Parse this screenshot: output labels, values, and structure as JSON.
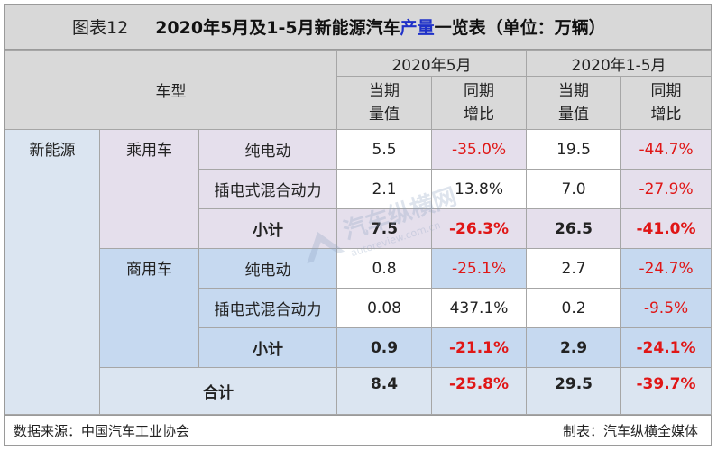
{
  "title": {
    "label": "图表12",
    "prefix": "2020年5月及1-5月新能源汽车",
    "highlight": "产量",
    "suffix": "一览表（单位：万辆）"
  },
  "header": {
    "vehicle_type": "车型",
    "period1": "2020年5月",
    "period2": "2020年1-5月",
    "current": [
      "当期",
      "量值"
    ],
    "yoy": [
      "同期",
      "增比"
    ]
  },
  "category": "新能源",
  "groups": {
    "passenger": {
      "name": "乘用车",
      "rows": [
        {
          "type": "纯电动",
          "m_val": "5.5",
          "m_yoy": "-35.0%",
          "c_val": "19.5",
          "c_yoy": "-44.7%"
        },
        {
          "type": "插电式混合动力",
          "m_val": "2.1",
          "m_yoy": "13.8%",
          "c_val": "7.0",
          "c_yoy": "-27.9%"
        }
      ],
      "subtotal": {
        "label": "小计",
        "m_val": "7.5",
        "m_yoy": "-26.3%",
        "c_val": "26.5",
        "c_yoy": "-41.0%"
      }
    },
    "commercial": {
      "name": "商用车",
      "rows": [
        {
          "type": "纯电动",
          "m_val": "0.8",
          "m_yoy": "-25.1%",
          "c_val": "2.7",
          "c_yoy": "-24.7%"
        },
        {
          "type": "插电式混合动力",
          "m_val": "0.08",
          "m_yoy": "437.1%",
          "c_val": "0.2",
          "c_yoy": "-9.5%"
        }
      ],
      "subtotal": {
        "label": "小计",
        "m_val": "0.9",
        "m_yoy": "-21.1%",
        "c_val": "2.9",
        "c_yoy": "-24.1%"
      }
    }
  },
  "total": {
    "label": "合计",
    "m_val": "8.4",
    "m_yoy": "-25.8%",
    "c_val": "29.5",
    "c_yoy": "-39.7%"
  },
  "footer": {
    "source": "数据来源：中国汽车工业协会",
    "maker": "制表：汽车纵横全媒体"
  },
  "watermark": {
    "text_cn": "汽车纵横网",
    "text_en": "autoreview.com.cn"
  },
  "colors": {
    "title_bg": "#d8d8d8",
    "header_bg": "#d9d9d9",
    "category_bg": "#dbe5f1",
    "passenger_bg": "#e5dfec",
    "commercial_bg": "#c6d9f0",
    "negative": "#e01616",
    "highlight": "#1f31c8"
  }
}
